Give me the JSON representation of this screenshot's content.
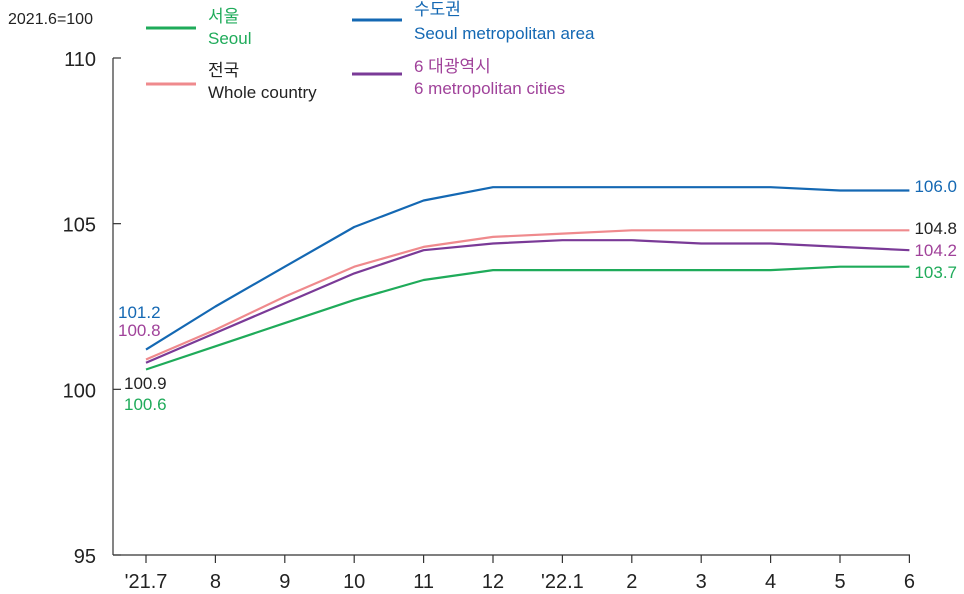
{
  "chart_data": {
    "type": "line",
    "unit_label": "2021.6=100",
    "categories": [
      "'21.7",
      "8",
      "9",
      "10",
      "11",
      "12",
      "'22.1",
      "2",
      "3",
      "4",
      "5",
      "6"
    ],
    "ylim": [
      95,
      110
    ],
    "yticks": [
      95,
      100,
      105,
      110
    ],
    "grid": false,
    "legend_position": "top-left",
    "series": [
      {
        "key": "seoul",
        "name_ko": "서울",
        "name": "Seoul",
        "color": "#1fab5a",
        "values": [
          100.6,
          101.3,
          102.0,
          102.7,
          103.3,
          103.6,
          103.6,
          103.6,
          103.6,
          103.6,
          103.7,
          103.7
        ]
      },
      {
        "key": "metro_area",
        "name_ko": "수도권",
        "name": "Seoul metropolitan area",
        "color": "#1468b3",
        "values": [
          101.2,
          102.5,
          103.7,
          104.9,
          105.7,
          106.1,
          106.1,
          106.1,
          106.1,
          106.1,
          106.0,
          106.0
        ]
      },
      {
        "key": "whole",
        "name_ko": "전국",
        "name": "Whole country",
        "color": "#ef8a8d",
        "values": [
          100.9,
          101.8,
          102.8,
          103.7,
          104.3,
          104.6,
          104.7,
          104.8,
          104.8,
          104.8,
          104.8,
          104.8
        ]
      },
      {
        "key": "six_cities",
        "name_ko": "6 대광역시",
        "name": "6 metropolitan cities",
        "color": "#7a3a97",
        "values": [
          100.8,
          101.7,
          102.6,
          103.5,
          104.2,
          104.4,
          104.5,
          104.5,
          104.4,
          104.4,
          104.3,
          104.2
        ]
      }
    ],
    "annotations": [
      {
        "text": "101.2",
        "color": "#1468b3"
      },
      {
        "text": "100.8",
        "color": "#a0429a"
      },
      {
        "text": "100.9",
        "color": "#222222"
      },
      {
        "text": "100.6",
        "color": "#1fab5a"
      },
      {
        "text": "106.0",
        "color": "#1468b3"
      },
      {
        "text": "104.8",
        "color": "#222222"
      },
      {
        "text": "104.2",
        "color": "#a0429a"
      },
      {
        "text": "103.7",
        "color": "#1fab5a"
      }
    ],
    "legend": [
      {
        "ko": "서울",
        "en": "Seoul",
        "line_color": "#1fab5a",
        "text_color": "#1fab5a"
      },
      {
        "ko": "전국",
        "en": "Whole country",
        "line_color": "#ef8a8d",
        "text_color": "#222222"
      },
      {
        "ko": "수도권",
        "en": "Seoul metropolitan area",
        "line_color": "#1468b3",
        "text_color": "#1468b3"
      },
      {
        "ko": "6 대광역시",
        "en": "6 metropolitan cities",
        "line_color": "#7a3a97",
        "text_color": "#a0429a"
      }
    ]
  }
}
